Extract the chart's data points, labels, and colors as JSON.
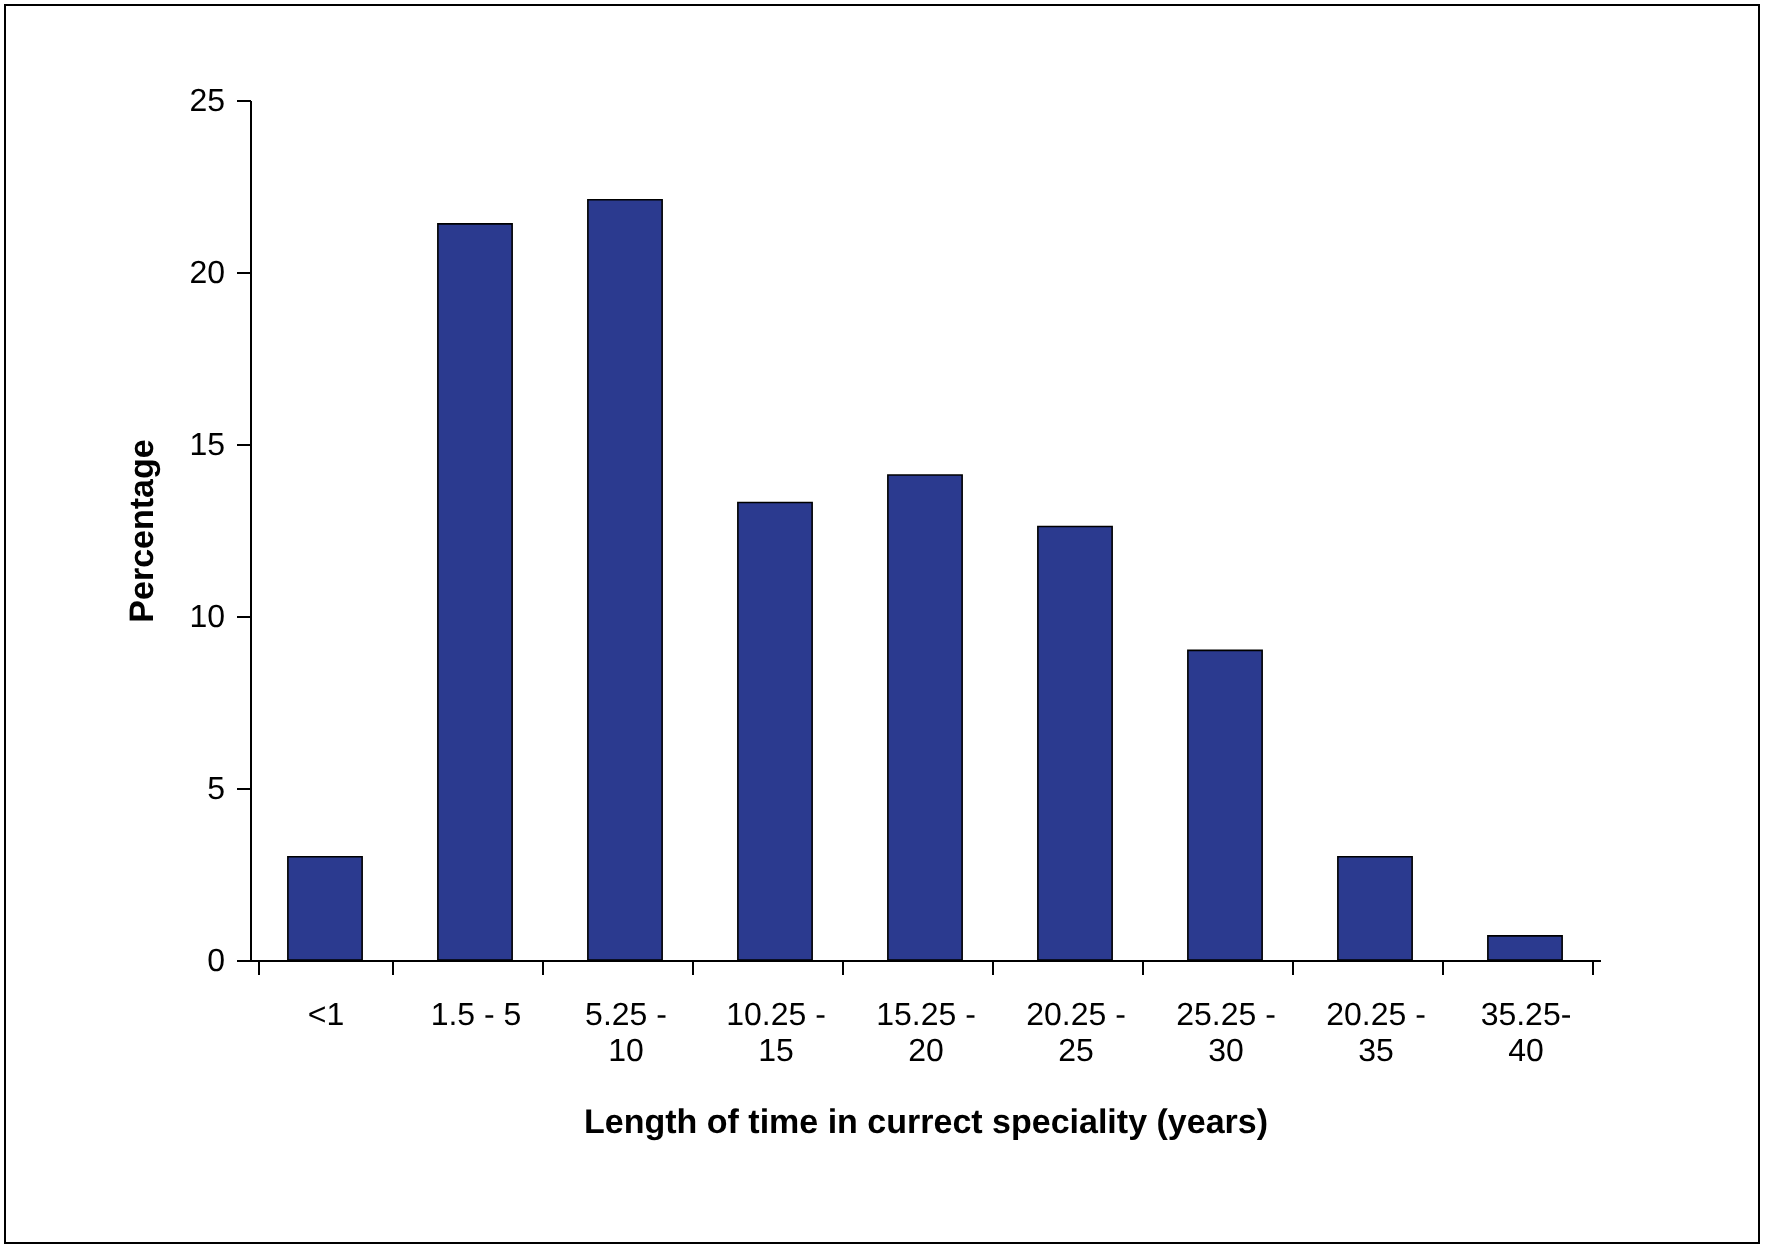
{
  "chart_data": {
    "type": "bar",
    "xlabel": "Length of time in currect speciality (years)",
    "ylabel": "Percentage",
    "categories": [
      "<1",
      "1.5 - 5",
      "5.25 - 10",
      "10.25 - 15",
      "15.25 - 20",
      "20.25 - 25",
      "25.25 - 30",
      "20.25 - 35",
      "35.25-40"
    ],
    "values": [
      3.0,
      21.4,
      22.1,
      13.3,
      14.1,
      12.6,
      9.0,
      3.0,
      0.7
    ],
    "color": "#2b3a8f",
    "ylim": [
      0,
      25
    ],
    "yticks": [
      0,
      5,
      10,
      15,
      20,
      25
    ],
    "grid": false
  }
}
